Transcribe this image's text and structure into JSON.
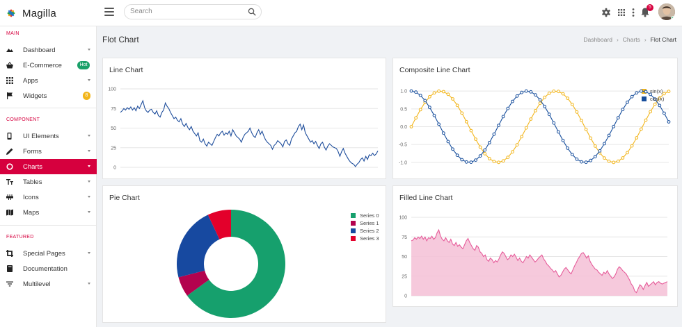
{
  "app": {
    "name": "Magilla"
  },
  "topbar": {
    "search_placeholder": "Search",
    "notification_count": "5"
  },
  "sidebar": {
    "sections": [
      {
        "label": "MAIN",
        "items": [
          {
            "label": "Dashboard",
            "icon": "dashboard-icon",
            "caret": true
          },
          {
            "label": "E-Commerce",
            "icon": "basket-icon",
            "badge": "Hot",
            "badge_color": "#1aa069"
          },
          {
            "label": "Apps",
            "icon": "apps-grid-icon",
            "caret": true
          },
          {
            "label": "Widgets",
            "icon": "flag-icon",
            "badge": "8",
            "badge_color": "#f2b51a"
          }
        ]
      },
      {
        "label": "COMPONENT",
        "items": [
          {
            "label": "UI Elements",
            "icon": "phone-icon",
            "caret": true
          },
          {
            "label": "Forms",
            "icon": "pencil-icon",
            "caret": true
          },
          {
            "label": "Charts",
            "icon": "donut-icon",
            "caret": true,
            "active": true
          },
          {
            "label": "Tables",
            "icon": "text-size-icon",
            "caret": true
          },
          {
            "label": "Icons",
            "icon": "ruler-icon",
            "caret": true
          },
          {
            "label": "Maps",
            "icon": "map-icon",
            "caret": true
          }
        ]
      },
      {
        "label": "FEATURED",
        "items": [
          {
            "label": "Special Pages",
            "icon": "crop-icon",
            "caret": true
          },
          {
            "label": "Documentation",
            "icon": "book-icon"
          },
          {
            "label": "Multilevel",
            "icon": "filter-lines-icon",
            "caret": true
          }
        ]
      }
    ]
  },
  "page": {
    "title": "Flot Chart",
    "breadcrumb": [
      "Dashboard",
      "Charts",
      "Flot Chart"
    ]
  },
  "colors": {
    "accent": "#d6003e",
    "line_blue": "#1f4e9c",
    "sin_yellow": "#f2b51a",
    "cos_blue": "#174e9c",
    "filled_line": "#e65c9a",
    "filled_area": "#f5bfd6",
    "pie": [
      "#16a06d",
      "#b3024e",
      "#1749a0",
      "#e3002b"
    ]
  },
  "chart_data": [
    {
      "type": "line",
      "title": "Line Chart",
      "ylim": [
        0,
        100
      ],
      "yticks": [
        "100",
        "75",
        "50",
        "25",
        "0"
      ],
      "grid": true,
      "series": [
        {
          "values": [
            70,
            72,
            75,
            73,
            76,
            74,
            77,
            73,
            76,
            72,
            78,
            75,
            80,
            85,
            76,
            72,
            70,
            73,
            74,
            70,
            68,
            72,
            66,
            64,
            70,
            73,
            82,
            78,
            75,
            70,
            66,
            62,
            64,
            60,
            58,
            62,
            55,
            52,
            56,
            51,
            48,
            52,
            46,
            43,
            40,
            44,
            34,
            32,
            36,
            30,
            27,
            32,
            30,
            28,
            33,
            38,
            42,
            40,
            44,
            46,
            41,
            44,
            42,
            46,
            40,
            48,
            44,
            40,
            38,
            36,
            32,
            38,
            42,
            44,
            46,
            50,
            44,
            40,
            38,
            44,
            48,
            42,
            46,
            40,
            35,
            32,
            30,
            28,
            23,
            28,
            30,
            34,
            32,
            30,
            26,
            33,
            35,
            30,
            28,
            36,
            40,
            44,
            46,
            52,
            55,
            48,
            54,
            44,
            40,
            36,
            32,
            34,
            30,
            33,
            28,
            24,
            30,
            32,
            26,
            22,
            27,
            30,
            28,
            26,
            25,
            24,
            20,
            14,
            20,
            24,
            18,
            14,
            10,
            7,
            5,
            4,
            1,
            4,
            6,
            10,
            12,
            8,
            14,
            10,
            16,
            15,
            18,
            15,
            17,
            21
          ]
        }
      ]
    },
    {
      "type": "line",
      "title": "Composite Line Chart",
      "ylim": [
        -1.1,
        1.1
      ],
      "yticks": [
        "1.0",
        "0.5",
        "0.0",
        "-0.5",
        "-1.0"
      ],
      "grid": true,
      "legend": "top-right",
      "series": [
        {
          "name": "sin(x)",
          "function": "sin",
          "x_range": [
            0,
            14
          ],
          "step": 0.25
        },
        {
          "name": "cos(x)",
          "function": "cos",
          "x_range": [
            0,
            14
          ],
          "step": 0.25
        }
      ]
    },
    {
      "type": "pie",
      "title": "Pie Chart",
      "legend": "right",
      "series": [
        {
          "name": "Series 0",
          "value": 65
        },
        {
          "name": "Series 1",
          "value": 6
        },
        {
          "name": "Series 2",
          "value": 22
        },
        {
          "name": "Series 3",
          "value": 7
        }
      ]
    },
    {
      "type": "area",
      "title": "Filled Line Chart",
      "ylim": [
        0,
        100
      ],
      "yticks": [
        "100",
        "75",
        "50",
        "25",
        "0"
      ],
      "grid": true,
      "series": [
        {
          "values": [
            70,
            71,
            74,
            72,
            75,
            73,
            76,
            72,
            75,
            70,
            74,
            73,
            76,
            72,
            74,
            80,
            84,
            76,
            72,
            70,
            74,
            70,
            68,
            72,
            66,
            64,
            68,
            63,
            65,
            62,
            60,
            65,
            70,
            73,
            68,
            64,
            60,
            58,
            64,
            62,
            56,
            54,
            50,
            52,
            46,
            44,
            48,
            46,
            42,
            45,
            43,
            47,
            52,
            56,
            54,
            50,
            46,
            48,
            52,
            50,
            53,
            49,
            45,
            48,
            44,
            42,
            46,
            50,
            48,
            52,
            49,
            46,
            43,
            45,
            48,
            50,
            52,
            47,
            44,
            40,
            38,
            35,
            33,
            30,
            32,
            28,
            24,
            26,
            30,
            34,
            36,
            33,
            30,
            28,
            33,
            38,
            42,
            47,
            50,
            54,
            55,
            52,
            48,
            51,
            44,
            40,
            37,
            34,
            33,
            30,
            28,
            26,
            30,
            28,
            32,
            28,
            25,
            22,
            24,
            28,
            34,
            37,
            35,
            32,
            30,
            28,
            24,
            20,
            15,
            12,
            6,
            4,
            9,
            14,
            12,
            8,
            13,
            17,
            12,
            14,
            16,
            18,
            14,
            17,
            18,
            16,
            15,
            16,
            17,
            18
          ]
        }
      ]
    }
  ]
}
